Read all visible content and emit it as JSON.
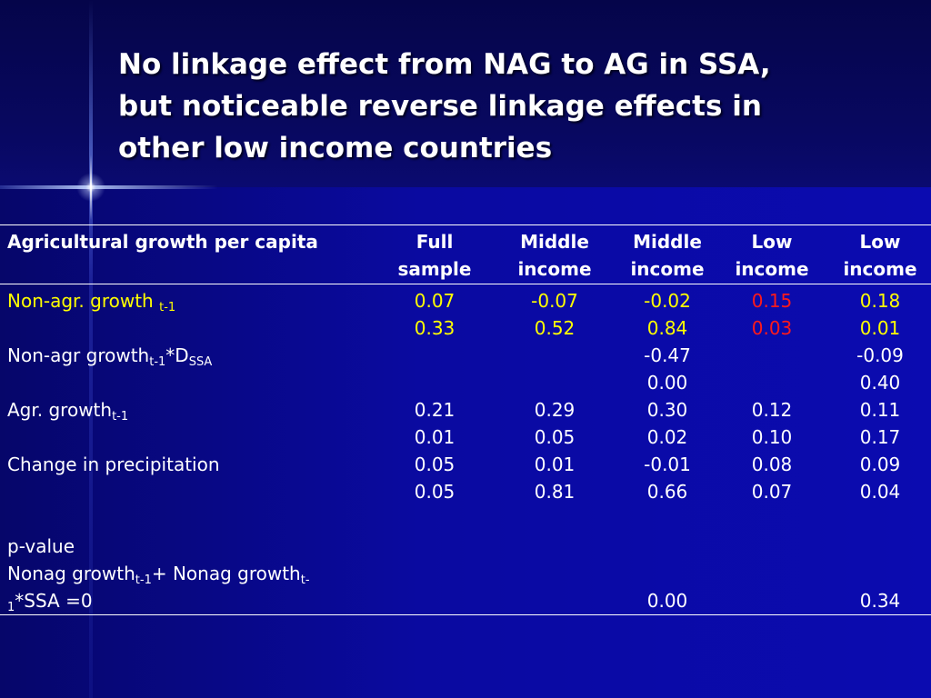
{
  "slide": {
    "title_lines": [
      "No linkage effect from NAG to AG in SSA,",
      "but noticeable reverse linkage effects in",
      "other low income countries"
    ]
  },
  "table": {
    "headers": [
      "Agricultural growth per capita",
      [
        "Full",
        "sample"
      ],
      [
        "Middle",
        "income"
      ],
      [
        "Middle",
        "income"
      ],
      [
        "Low",
        "income"
      ],
      [
        "Low",
        "income"
      ]
    ],
    "rows": {
      "nonagr": {
        "label": "Non-agr. growth ",
        "label_sub": "t-1",
        "coef": [
          "0.07",
          "-0.07",
          "-0.02",
          "0.15",
          "0.18"
        ],
        "pval": [
          "0.33",
          "0.52",
          "0.84",
          "0.03",
          "0.01"
        ]
      },
      "interaction": {
        "label_a": "Non-agr growth",
        "label_sub1": "t-1",
        "label_b": "*D",
        "label_sub2": "SSA",
        "coef": [
          "",
          "",
          "-0.47",
          "",
          "-0.09"
        ],
        "pval": [
          "",
          "",
          "0.00",
          "",
          "0.40"
        ]
      },
      "agr": {
        "label": "Agr. growth",
        "label_sub": "t-1",
        "coef": [
          "0.21",
          "0.29",
          "0.30",
          "0.12",
          "0.11"
        ],
        "pval": [
          "0.01",
          "0.05",
          "0.02",
          "0.10",
          "0.17"
        ]
      },
      "precip": {
        "label": "Change in precipitation",
        "coef": [
          "0.05",
          "0.01",
          "-0.01",
          "0.08",
          "0.09"
        ],
        "pval": [
          "0.05",
          "0.81",
          "0.66",
          "0.07",
          "0.04"
        ]
      },
      "pvalue_test": {
        "line1": "p-value",
        "line2_a": "Nonag growth",
        "line2_sub1": "t-1",
        "line2_b": "+ Nonag growth",
        "line2_sup": "t-",
        "line3_sub": "1",
        "line3_b": "*SSA =0",
        "values": [
          "",
          "",
          "0.00",
          "",
          "0.34"
        ]
      }
    }
  },
  "colors": {
    "background": "#0a0a78",
    "text": "#ffffff",
    "highlight_yellow": "#ffff00",
    "highlight_red": "#ff1a1a"
  }
}
